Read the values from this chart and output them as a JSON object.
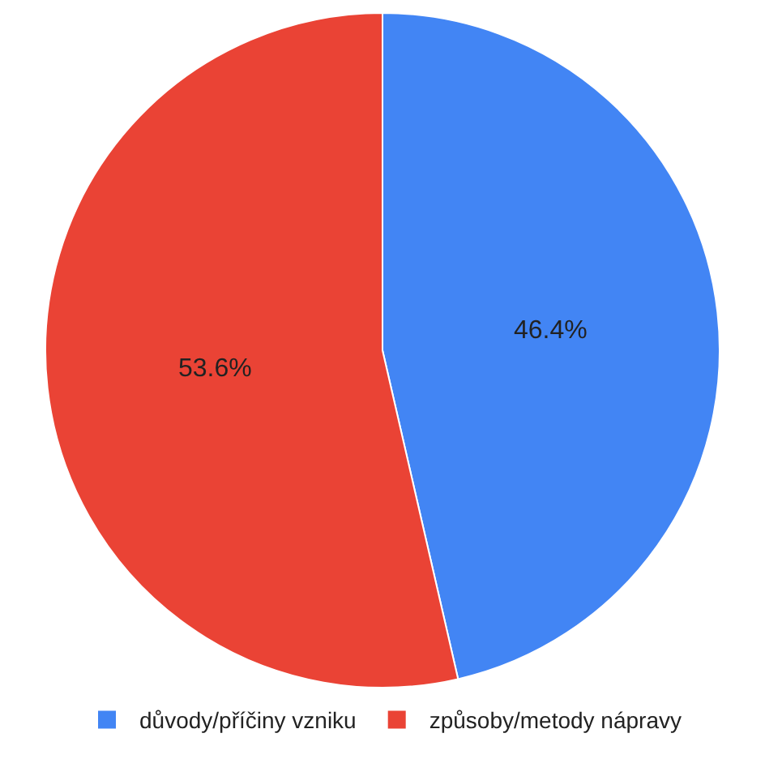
{
  "chart_data": {
    "type": "pie",
    "categories": [
      "důvody/příčiny vzniku",
      "způsoby/metody nápravy"
    ],
    "values": [
      46.4,
      53.6
    ],
    "value_labels": [
      "46.4%",
      "53.6%"
    ],
    "colors": [
      "#4285f4",
      "#ea4335"
    ],
    "legend": "bottom"
  }
}
